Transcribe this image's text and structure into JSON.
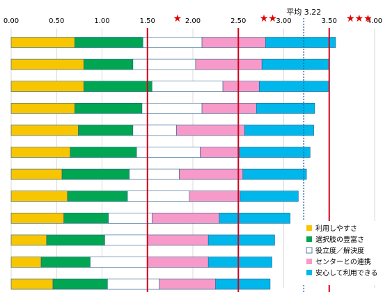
{
  "chart_data": {
    "type": "bar",
    "orientation": "horizontal",
    "stacked": true,
    "xlim": [
      0,
      4
    ],
    "x_ticks": [
      "0.00",
      "0.50",
      "1.00",
      "1.50",
      "2.00",
      "2.50",
      "3.00",
      "3.50",
      "4.00"
    ],
    "grid": true,
    "legend_position": "bottom-right",
    "average_label": "平均 3.22",
    "average_value": 3.22,
    "reference_lines": [
      1.5,
      2.5,
      3.5
    ],
    "star_markers": [
      "★",
      "★★",
      "★★★"
    ],
    "star_positions": [
      1.83,
      2.83,
      3.83
    ],
    "series": [
      {
        "name": "利用しやすさ",
        "color": "#F7C600",
        "values": [
          0.7,
          0.8,
          0.8,
          0.7,
          0.74,
          0.65,
          0.56,
          0.62,
          0.58,
          0.39,
          0.33,
          0.46
        ]
      },
      {
        "name": "選択肢の豊富さ",
        "color": "#00A651",
        "values": [
          0.75,
          0.54,
          0.75,
          0.74,
          0.6,
          0.73,
          0.74,
          0.66,
          0.49,
          0.64,
          0.54,
          0.6
        ]
      },
      {
        "name": "役立度／解決度",
        "color": "#FFFFFF",
        "values": [
          0.65,
          0.69,
          0.78,
          0.66,
          0.48,
          0.7,
          0.55,
          0.68,
          0.48,
          0.47,
          0.63,
          0.57
        ]
      },
      {
        "name": "センターとの連携",
        "color": "#F79AC9",
        "values": [
          0.7,
          0.73,
          0.4,
          0.6,
          0.75,
          0.43,
          0.7,
          0.56,
          0.74,
          0.67,
          0.67,
          0.62
        ]
      },
      {
        "name": "安心して利用できる",
        "color": "#00B7EB",
        "values": [
          0.77,
          0.74,
          0.77,
          0.64,
          0.76,
          0.78,
          0.7,
          0.64,
          0.78,
          0.73,
          0.7,
          0.6
        ]
      }
    ]
  }
}
